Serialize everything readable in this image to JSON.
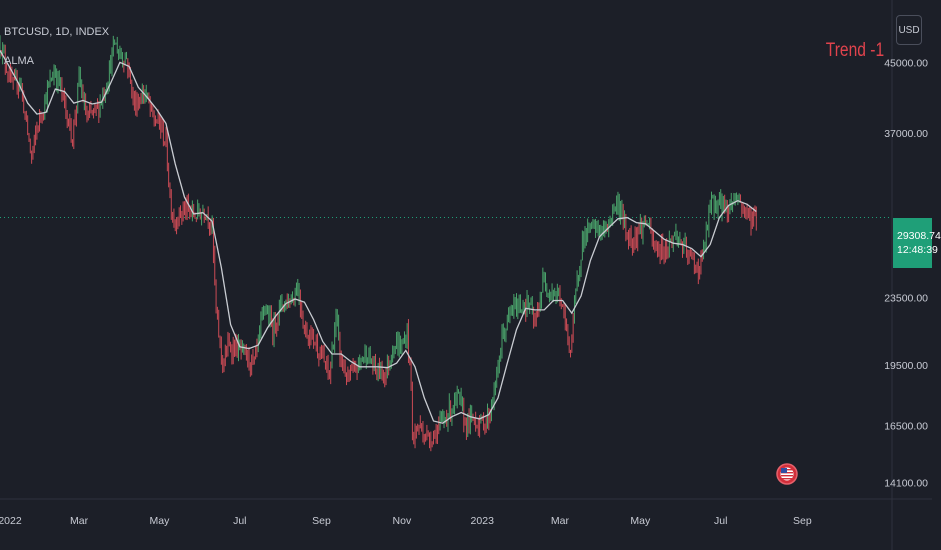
{
  "header": {
    "symbol_line": "BTCUSD, 1D, INDEX",
    "indicator": "ALMA",
    "trend_label": "Trend -1",
    "currency_button": "USD"
  },
  "price_tag": {
    "price": "29308.74",
    "countdown": "12:48:39",
    "color": "#1f9f78"
  },
  "colors": {
    "background": "#1c1f28",
    "bull": "#4aa36b",
    "bear": "#cc4b55",
    "ma_line": "#c9ccd2",
    "dotted_line": "#1f9f78",
    "trend": "#e0434d"
  },
  "chart_data": {
    "type": "line",
    "title": "BTCUSD, 1D, INDEX",
    "xlabel": "",
    "ylabel": "",
    "yscale": "log",
    "ylim": [
      13500,
      52000
    ],
    "y_ticks": [
      {
        "value": 45000,
        "label": "45000.00"
      },
      {
        "value": 37000,
        "label": "37000.00"
      },
      {
        "value": 29308.74,
        "label": ""
      },
      {
        "value": 23500,
        "label": "23500.00"
      },
      {
        "value": 19500,
        "label": "19500.00"
      },
      {
        "value": 16500,
        "label": "16500.00"
      },
      {
        "value": 14100,
        "label": "14100.00"
      }
    ],
    "x_ticks": [
      {
        "date": "2022-01-01",
        "label": "2022"
      },
      {
        "date": "2022-03-01",
        "label": "Mar"
      },
      {
        "date": "2022-05-01",
        "label": "May"
      },
      {
        "date": "2022-07-01",
        "label": "Jul"
      },
      {
        "date": "2022-09-01",
        "label": "Sep"
      },
      {
        "date": "2022-11-01",
        "label": "Nov"
      },
      {
        "date": "2023-01-01",
        "label": "2023"
      },
      {
        "date": "2023-03-01",
        "label": "Mar"
      },
      {
        "date": "2023-05-01",
        "label": "May"
      },
      {
        "date": "2023-07-01",
        "label": "Jul"
      },
      {
        "date": "2023-09-01",
        "label": "Sep"
      }
    ],
    "x_range": [
      "2021-12-31",
      "2023-11-08"
    ],
    "last_price": 29308.74,
    "price_series": {
      "name": "",
      "points": [
        [
          "2021-12-31",
          47500
        ],
        [
          "2022-01-05",
          44500
        ],
        [
          "2022-01-10",
          42000
        ],
        [
          "2022-01-15",
          43000
        ],
        [
          "2022-01-21",
          37000
        ],
        [
          "2022-01-24",
          34500
        ],
        [
          "2022-01-28",
          37500
        ],
        [
          "2022-02-05",
          41500
        ],
        [
          "2022-02-10",
          44000
        ],
        [
          "2022-02-14",
          42500
        ],
        [
          "2022-02-18",
          40000
        ],
        [
          "2022-02-24",
          36500
        ],
        [
          "2022-03-01",
          43000
        ],
        [
          "2022-03-07",
          38500
        ],
        [
          "2022-03-15",
          39500
        ],
        [
          "2022-03-22",
          42500
        ],
        [
          "2022-03-28",
          47500
        ],
        [
          "2022-04-01",
          46000
        ],
        [
          "2022-04-06",
          45500
        ],
        [
          "2022-04-12",
          40000
        ],
        [
          "2022-04-20",
          41500
        ],
        [
          "2022-04-26",
          38500
        ],
        [
          "2022-05-01",
          38000
        ],
        [
          "2022-05-06",
          36000
        ],
        [
          "2022-05-09",
          31000
        ],
        [
          "2022-05-12",
          29000
        ],
        [
          "2022-05-20",
          30000
        ],
        [
          "2022-05-28",
          29500
        ],
        [
          "2022-06-05",
          30000
        ],
        [
          "2022-06-10",
          28500
        ],
        [
          "2022-06-13",
          22500
        ],
        [
          "2022-06-18",
          19500
        ],
        [
          "2022-06-22",
          20500
        ],
        [
          "2022-06-28",
          20500
        ],
        [
          "2022-07-05",
          20000
        ],
        [
          "2022-07-12",
          19500
        ],
        [
          "2022-07-20",
          23000
        ],
        [
          "2022-07-26",
          21500
        ],
        [
          "2022-08-01",
          23000
        ],
        [
          "2022-08-10",
          23500
        ],
        [
          "2022-08-14",
          24300
        ],
        [
          "2022-08-19",
          21500
        ],
        [
          "2022-08-26",
          21000
        ],
        [
          "2022-09-01",
          20000
        ],
        [
          "2022-09-07",
          18900
        ],
        [
          "2022-09-12",
          22300
        ],
        [
          "2022-09-15",
          20000
        ],
        [
          "2022-09-21",
          18700
        ],
        [
          "2022-09-28",
          19400
        ],
        [
          "2022-10-05",
          20200
        ],
        [
          "2022-10-12",
          19200
        ],
        [
          "2022-10-20",
          19100
        ],
        [
          "2022-10-26",
          20700
        ],
        [
          "2022-11-01",
          20500
        ],
        [
          "2022-11-05",
          21300
        ],
        [
          "2022-11-08",
          18500
        ],
        [
          "2022-11-09",
          15900
        ],
        [
          "2022-11-14",
          16500
        ],
        [
          "2022-11-21",
          15900
        ],
        [
          "2022-11-28",
          16300
        ],
        [
          "2022-12-05",
          17000
        ],
        [
          "2022-12-14",
          17800
        ],
        [
          "2022-12-19",
          16600
        ],
        [
          "2022-12-26",
          16800
        ],
        [
          "2022-12-31",
          16550
        ],
        [
          "2023-01-06",
          16900
        ],
        [
          "2023-01-12",
          18800
        ],
        [
          "2023-01-16",
          21000
        ],
        [
          "2023-01-24",
          22800
        ],
        [
          "2023-01-30",
          23000
        ],
        [
          "2023-02-06",
          23000
        ],
        [
          "2023-02-10",
          21700
        ],
        [
          "2023-02-16",
          24500
        ],
        [
          "2023-02-22",
          24000
        ],
        [
          "2023-03-01",
          23500
        ],
        [
          "2023-03-09",
          20300
        ],
        [
          "2023-03-14",
          24500
        ],
        [
          "2023-03-18",
          27500
        ],
        [
          "2023-03-23",
          28300
        ],
        [
          "2023-03-29",
          28400
        ],
        [
          "2023-04-05",
          28200
        ],
        [
          "2023-04-11",
          30200
        ],
        [
          "2023-04-15",
          30400
        ],
        [
          "2023-04-20",
          28200
        ],
        [
          "2023-04-24",
          27500
        ],
        [
          "2023-05-01",
          28500
        ],
        [
          "2023-05-06",
          29000
        ],
        [
          "2023-05-12",
          26800
        ],
        [
          "2023-05-20",
          26900
        ],
        [
          "2023-05-28",
          28000
        ],
        [
          "2023-06-05",
          26500
        ],
        [
          "2023-06-10",
          26000
        ],
        [
          "2023-06-15",
          25300
        ],
        [
          "2023-06-21",
          28500
        ],
        [
          "2023-06-23",
          30400
        ],
        [
          "2023-07-01",
          30500
        ],
        [
          "2023-07-06",
          30000
        ],
        [
          "2023-07-13",
          31200
        ],
        [
          "2023-07-18",
          30000
        ],
        [
          "2023-07-24",
          29300
        ],
        [
          "2023-07-28",
          29300
        ]
      ]
    },
    "series": [
      {
        "name": "ALMA",
        "points": [
          [
            "2021-12-31",
            46500
          ],
          [
            "2022-01-07",
            44500
          ],
          [
            "2022-01-14",
            42500
          ],
          [
            "2022-01-21",
            40200
          ],
          [
            "2022-01-28",
            39000
          ],
          [
            "2022-02-04",
            39200
          ],
          [
            "2022-02-11",
            41800
          ],
          [
            "2022-02-18",
            41500
          ],
          [
            "2022-02-25",
            40200
          ],
          [
            "2022-03-04",
            40500
          ],
          [
            "2022-03-11",
            40100
          ],
          [
            "2022-03-18",
            40300
          ],
          [
            "2022-03-25",
            42500
          ],
          [
            "2022-04-01",
            45000
          ],
          [
            "2022-04-08",
            44500
          ],
          [
            "2022-04-15",
            42000
          ],
          [
            "2022-04-22",
            40800
          ],
          [
            "2022-04-29",
            39500
          ],
          [
            "2022-05-06",
            38000
          ],
          [
            "2022-05-13",
            34000
          ],
          [
            "2022-05-20",
            31000
          ],
          [
            "2022-05-27",
            29600
          ],
          [
            "2022-06-03",
            29700
          ],
          [
            "2022-06-10",
            29000
          ],
          [
            "2022-06-17",
            25500
          ],
          [
            "2022-06-24",
            21800
          ],
          [
            "2022-07-01",
            20500
          ],
          [
            "2022-07-08",
            20400
          ],
          [
            "2022-07-15",
            20600
          ],
          [
            "2022-07-22",
            21600
          ],
          [
            "2022-07-29",
            22400
          ],
          [
            "2022-08-05",
            23100
          ],
          [
            "2022-08-12",
            23400
          ],
          [
            "2022-08-19",
            23200
          ],
          [
            "2022-08-26",
            22100
          ],
          [
            "2022-09-02",
            20800
          ],
          [
            "2022-09-09",
            20100
          ],
          [
            "2022-09-16",
            20100
          ],
          [
            "2022-09-23",
            19700
          ],
          [
            "2022-09-30",
            19400
          ],
          [
            "2022-10-07",
            19400
          ],
          [
            "2022-10-14",
            19400
          ],
          [
            "2022-10-21",
            19350
          ],
          [
            "2022-10-28",
            19600
          ],
          [
            "2022-11-04",
            20300
          ],
          [
            "2022-11-11",
            19400
          ],
          [
            "2022-11-18",
            17800
          ],
          [
            "2022-11-25",
            16700
          ],
          [
            "2022-12-02",
            16600
          ],
          [
            "2022-12-09",
            16900
          ],
          [
            "2022-12-16",
            17100
          ],
          [
            "2022-12-23",
            16900
          ],
          [
            "2022-12-30",
            16800
          ],
          [
            "2023-01-06",
            17000
          ],
          [
            "2023-01-13",
            17800
          ],
          [
            "2023-01-20",
            19600
          ],
          [
            "2023-01-27",
            21500
          ],
          [
            "2023-02-03",
            22800
          ],
          [
            "2023-02-10",
            22700
          ],
          [
            "2023-02-17",
            22700
          ],
          [
            "2023-02-24",
            23300
          ],
          [
            "2023-03-03",
            23300
          ],
          [
            "2023-03-10",
            22500
          ],
          [
            "2023-03-17",
            23600
          ],
          [
            "2023-03-24",
            26000
          ],
          [
            "2023-03-31",
            27800
          ],
          [
            "2023-04-07",
            28500
          ],
          [
            "2023-04-14",
            29200
          ],
          [
            "2023-04-21",
            29300
          ],
          [
            "2023-04-28",
            28900
          ],
          [
            "2023-05-05",
            28800
          ],
          [
            "2023-05-12",
            28200
          ],
          [
            "2023-05-19",
            27600
          ],
          [
            "2023-05-26",
            27300
          ],
          [
            "2023-06-02",
            27200
          ],
          [
            "2023-06-09",
            26900
          ],
          [
            "2023-06-16",
            26300
          ],
          [
            "2023-06-23",
            27200
          ],
          [
            "2023-06-30",
            29300
          ],
          [
            "2023-07-07",
            30300
          ],
          [
            "2023-07-14",
            30700
          ],
          [
            "2023-07-21",
            30400
          ],
          [
            "2023-07-28",
            29800
          ]
        ]
      }
    ],
    "grid": false,
    "legend": "none"
  }
}
